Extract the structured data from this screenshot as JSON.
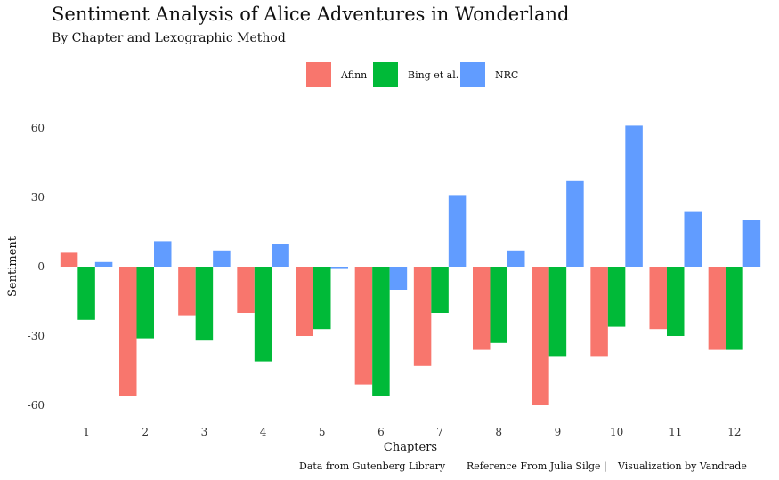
{
  "chart_data": {
    "type": "bar",
    "title": "Sentiment Analysis of Alice Adventures in Wonderland",
    "subtitle": "By Chapter and Lexographic Method",
    "xlabel": "Chapters",
    "ylabel": "Sentiment",
    "categories": [
      "1",
      "2",
      "3",
      "4",
      "5",
      "6",
      "7",
      "8",
      "9",
      "10",
      "11",
      "12"
    ],
    "series": [
      {
        "name": "Afinn",
        "color": "#F8766D",
        "values": [
          6,
          -56,
          -21,
          -20,
          -30,
          -51,
          -43,
          -36,
          -60,
          -39,
          -27,
          -36
        ]
      },
      {
        "name": "Bing et al.",
        "color": "#00BA38",
        "values": [
          -23,
          -31,
          -32,
          -41,
          -27,
          -56,
          -20,
          -33,
          -39,
          -26,
          -30,
          -36
        ]
      },
      {
        "name": "NRC",
        "color": "#619CFF",
        "values": [
          2,
          11,
          7,
          10,
          -1,
          -10,
          31,
          7,
          37,
          61,
          24,
          20
        ]
      }
    ],
    "yticks": [
      -60,
      -30,
      0,
      30,
      60
    ],
    "ylim": [
      -63,
      63
    ],
    "grid": false,
    "legend_position": "top"
  },
  "caption": {
    "source": "Data from Gutenberg Library |",
    "reference": "Reference From Julia Silge |",
    "credit": "Visualization by Vandrade"
  }
}
